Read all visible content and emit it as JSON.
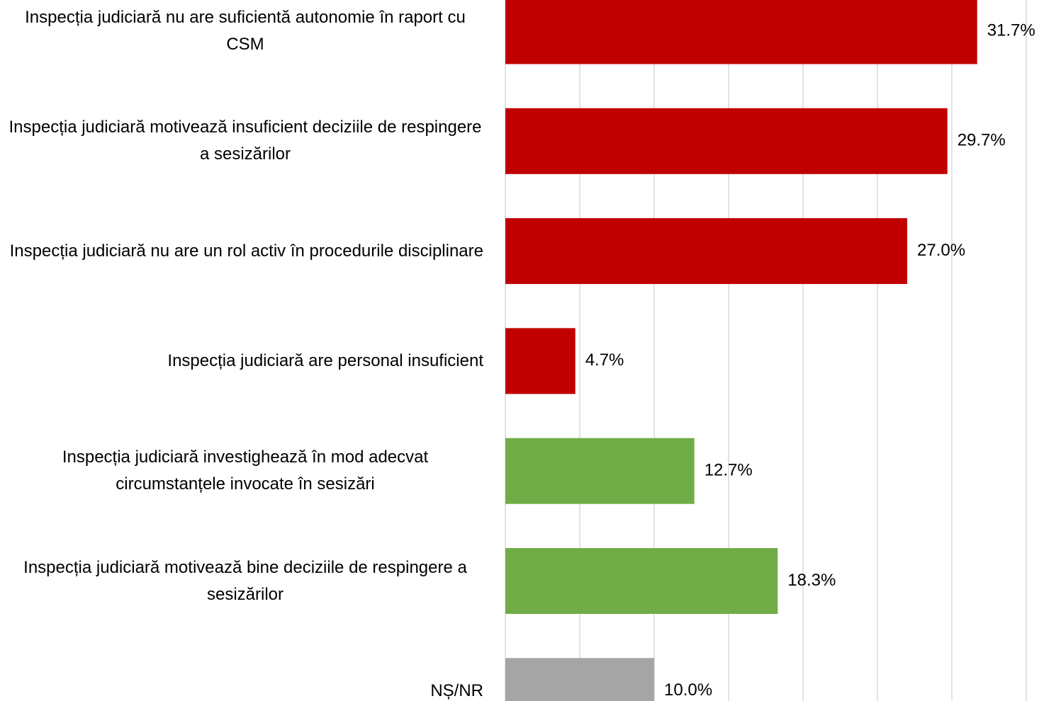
{
  "chart_data": {
    "type": "hbar",
    "categories": [
      "Inspecția judiciară nu are suficientă autonomie în raport cu CSM",
      "Inspecția judiciară motivează insuficient deciziile de respingere a sesizărilor",
      "Inspecția judiciară nu are un rol activ în procedurile disciplinare",
      "Inspecția judiciară are personal insuficient",
      "Inspecția judiciară investighează în mod adecvat circumstanțele invocate în sesizări",
      "Inspecția judiciară motivează bine deciziile de respingere a sesizărilor",
      "NȘ/NR"
    ],
    "values": [
      31.7,
      29.7,
      27.0,
      4.7,
      12.7,
      18.3,
      10.0
    ],
    "value_labels": [
      "31.7%",
      "29.7%",
      "27.0%",
      "4.7%",
      "12.7%",
      "18.3%",
      "10.0%"
    ],
    "colors": [
      "#c00000",
      "#c00000",
      "#c00000",
      "#c00000",
      "#70ad47",
      "#70ad47",
      "#a5a5a5"
    ],
    "xlim": [
      0,
      35
    ],
    "xticks": [
      0,
      5,
      10,
      15,
      20,
      25,
      30,
      35
    ],
    "grid": true
  }
}
